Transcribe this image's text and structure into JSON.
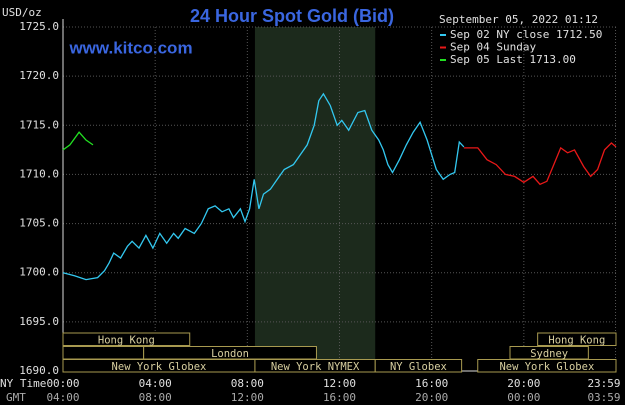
{
  "chart_data": {
    "type": "line",
    "title": "24 Hour Spot Gold (Bid)",
    "site": "www.kitco.com",
    "y_label": "USD/oz",
    "timestamp": "September 05, 2022 01:12",
    "x_label": "NY Time",
    "x2_label": "GMT",
    "xlim": [
      0,
      24
    ],
    "xticks": [
      {
        "value": 0,
        "label": "00:00"
      },
      {
        "value": 4,
        "label": "04:00"
      },
      {
        "value": 8,
        "label": "08:00"
      },
      {
        "value": 12,
        "label": "12:00"
      },
      {
        "value": 16,
        "label": "16:00"
      },
      {
        "value": 20,
        "label": "20:00"
      },
      {
        "value": 23.98,
        "label": "23:59"
      }
    ],
    "x2tick_labels": [
      "04:00",
      "08:00",
      "12:00",
      "16:00",
      "20:00",
      "00:00",
      "03:59"
    ],
    "ylim": [
      1690,
      1725
    ],
    "yticks": [
      {
        "value": 1690,
        "label": "1690.0"
      },
      {
        "value": 1695,
        "label": "1695.0"
      },
      {
        "value": 1700,
        "label": "1700.0"
      },
      {
        "value": 1705,
        "label": "1705.0"
      },
      {
        "value": 1710,
        "label": "1710.0"
      },
      {
        "value": 1715,
        "label": "1715.0"
      },
      {
        "value": 1720,
        "label": "1720.0"
      },
      {
        "value": 1725,
        "label": "1725.0"
      }
    ],
    "grid": true,
    "sessions": [
      "Hong Kong",
      "London",
      "New York Globex",
      "New York NYMEX",
      "NY Globex",
      "Hong Kong",
      "Sydney",
      "New York Globex"
    ],
    "series": [
      {
        "name": "Sep 02 NY close 1712.50",
        "color": "#33c8f0",
        "x": [
          0,
          0.5,
          1.0,
          1.5,
          1.8,
          2.0,
          2.2,
          2.5,
          2.8,
          3.0,
          3.3,
          3.6,
          3.9,
          4.2,
          4.5,
          4.8,
          5.0,
          5.3,
          5.7,
          6.0,
          6.3,
          6.6,
          6.9,
          7.2,
          7.4,
          7.7,
          7.9,
          8.1,
          8.3,
          8.5,
          8.7,
          9.0,
          9.3,
          9.6,
          10.0,
          10.3,
          10.6,
          10.9,
          11.1,
          11.3,
          11.6,
          11.9,
          12.1,
          12.4,
          12.8,
          13.1,
          13.4,
          13.7,
          13.9,
          14.1,
          14.3,
          14.6,
          14.9,
          15.2,
          15.5,
          15.8,
          16.0,
          16.2,
          16.5,
          16.8,
          17.0,
          17.2,
          17.4
        ],
        "values": [
          1700.0,
          1699.7,
          1699.3,
          1699.5,
          1700.2,
          1701.0,
          1702.0,
          1701.5,
          1702.7,
          1703.2,
          1702.5,
          1703.8,
          1702.5,
          1704.0,
          1703.0,
          1704.0,
          1703.5,
          1704.5,
          1704.0,
          1705.0,
          1706.5,
          1706.8,
          1706.2,
          1706.5,
          1705.6,
          1706.5,
          1705.2,
          1706.5,
          1709.5,
          1706.5,
          1708.0,
          1708.5,
          1709.5,
          1710.5,
          1711.0,
          1712.0,
          1713.0,
          1715.0,
          1717.5,
          1718.2,
          1717.0,
          1715.0,
          1715.5,
          1714.5,
          1716.3,
          1716.5,
          1714.5,
          1713.5,
          1712.5,
          1711.0,
          1710.2,
          1711.5,
          1713.0,
          1714.3,
          1715.3,
          1713.5,
          1712.0,
          1710.5,
          1709.5,
          1710.0,
          1710.2,
          1713.3,
          1712.8
        ]
      },
      {
        "name": "Sep 04 Sunday",
        "color": "#e81818",
        "x": [
          17.4,
          18.0,
          18.4,
          18.8,
          19.2,
          19.6,
          20.0,
          20.4,
          20.7,
          21.0,
          21.3,
          21.6,
          21.9,
          22.2,
          22.6,
          22.9,
          23.2,
          23.5,
          23.8,
          24.0
        ],
        "values": [
          1712.7,
          1712.7,
          1711.5,
          1711.0,
          1710.0,
          1709.8,
          1709.2,
          1709.8,
          1709.0,
          1709.3,
          1711.0,
          1712.7,
          1712.2,
          1712.5,
          1710.8,
          1709.8,
          1710.5,
          1712.5,
          1713.2,
          1712.8
        ]
      },
      {
        "name": "Sep 05 Last 1713.00",
        "color": "#22e022",
        "x": [
          0,
          0.3,
          0.7,
          1.0,
          1.3
        ],
        "values": [
          1712.5,
          1713.0,
          1714.3,
          1713.5,
          1713.0
        ]
      }
    ]
  }
}
